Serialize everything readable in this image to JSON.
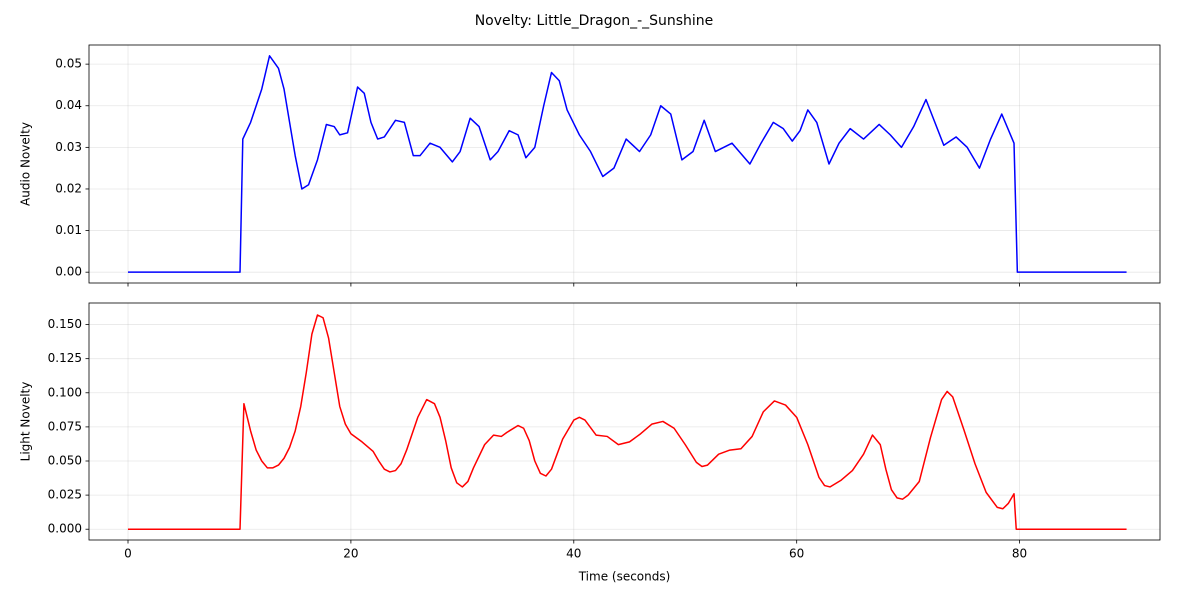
{
  "title": "Novelty: Little_Dragon_-_Sunshine",
  "chart_data": [
    {
      "type": "line",
      "ylabel": "Audio Novelty",
      "grid": true,
      "xtick_labels": false,
      "xlim": [
        -3.5,
        92.6
      ],
      "xticks": [
        0,
        20,
        40,
        60,
        80
      ],
      "ylim": [
        -0.0026,
        0.0546
      ],
      "yticks": [
        {
          "value": 0,
          "label": "0.00"
        },
        {
          "value": 0.01,
          "label": "0.01"
        },
        {
          "value": 0.02,
          "label": "0.02"
        },
        {
          "value": 0.03,
          "label": "0.03"
        },
        {
          "value": 0.04,
          "label": "0.04"
        },
        {
          "value": 0.05,
          "label": "0.05"
        }
      ],
      "x": [
        0,
        10.05,
        10.3,
        11,
        12,
        12.7,
        13.5,
        14,
        14.5,
        15,
        15.6,
        16.2,
        17,
        17.8,
        18.5,
        19,
        19.7,
        20.6,
        21.2,
        21.8,
        22.4,
        23,
        24,
        24.8,
        25.6,
        26.2,
        27.1,
        28,
        29.1,
        29.8,
        30.7,
        31.5,
        32.5,
        33.2,
        34.2,
        35,
        35.7,
        36.5,
        37.3,
        38,
        38.7,
        39.4,
        40.5,
        41.5,
        42.6,
        43.6,
        44.7,
        45.9,
        46.9,
        47.8,
        48.7,
        49.7,
        50.7,
        51.7,
        52.7,
        54.2,
        55.8,
        56.8,
        57.9,
        58.8,
        59.6,
        60.3,
        61,
        61.8,
        62.9,
        63.8,
        64.8,
        66,
        67.4,
        68.4,
        69.4,
        70.5,
        71.6,
        72.4,
        73.2,
        74.3,
        75.3,
        76.4,
        77.4,
        78.4,
        79.5,
        79.8,
        89.6
      ],
      "series": [
        {
          "color": "#0000ff",
          "values": [
            0,
            0,
            0.032,
            0.036,
            0.044,
            0.052,
            0.049,
            0.044,
            0.036,
            0.028,
            0.02,
            0.021,
            0.027,
            0.0355,
            0.035,
            0.033,
            0.0335,
            0.0445,
            0.043,
            0.036,
            0.032,
            0.0325,
            0.0365,
            0.036,
            0.028,
            0.028,
            0.031,
            0.03,
            0.0265,
            0.029,
            0.037,
            0.035,
            0.027,
            0.029,
            0.034,
            0.033,
            0.0275,
            0.03,
            0.04,
            0.048,
            0.046,
            0.039,
            0.033,
            0.029,
            0.023,
            0.025,
            0.032,
            0.029,
            0.033,
            0.04,
            0.038,
            0.027,
            0.029,
            0.0365,
            0.029,
            0.031,
            0.026,
            0.031,
            0.036,
            0.0345,
            0.0315,
            0.034,
            0.039,
            0.036,
            0.026,
            0.031,
            0.0345,
            0.032,
            0.0355,
            0.033,
            0.03,
            0.035,
            0.0415,
            0.036,
            0.0305,
            0.0325,
            0.03,
            0.025,
            0.032,
            0.038,
            0.031,
            0,
            0
          ]
        }
      ]
    },
    {
      "type": "line",
      "ylabel": "Light Novelty",
      "xlabel": "Time (seconds)",
      "grid": true,
      "xlim": [
        -3.5,
        92.6
      ],
      "xticks": [
        0,
        20,
        40,
        60,
        80
      ],
      "ylim": [
        -0.0079,
        0.1658
      ],
      "yticks": [
        {
          "value": 0,
          "label": "0.000"
        },
        {
          "value": 0.025,
          "label": "0.025"
        },
        {
          "value": 0.05,
          "label": "0.050"
        },
        {
          "value": 0.075,
          "label": "0.075"
        },
        {
          "value": 0.1,
          "label": "0.100"
        },
        {
          "value": 0.125,
          "label": "0.125"
        },
        {
          "value": 0.15,
          "label": "0.150"
        }
      ],
      "x": [
        0,
        10.05,
        10.4,
        11,
        11.5,
        12,
        12.5,
        13,
        13.5,
        14,
        14.5,
        15,
        15.5,
        16,
        16.5,
        17,
        17.5,
        18,
        18.5,
        19,
        19.5,
        20,
        21,
        22,
        22.5,
        23,
        23.5,
        24,
        24.5,
        25,
        26,
        26.8,
        27.5,
        28,
        28.5,
        29,
        29.5,
        30,
        30.5,
        31,
        32,
        32.8,
        33.5,
        34,
        35,
        35.5,
        36,
        36.5,
        37,
        37.5,
        38,
        39,
        40,
        40.5,
        41,
        42,
        43,
        44,
        45,
        46,
        47,
        48,
        49,
        50,
        51,
        51.5,
        52,
        53,
        54,
        55,
        56,
        57,
        58,
        59,
        60,
        61,
        62,
        62.5,
        63,
        64,
        65,
        66,
        66.8,
        67.5,
        68,
        68.5,
        69,
        69.5,
        70,
        71,
        72,
        73,
        73.5,
        74,
        75,
        76,
        77,
        78,
        78.5,
        79,
        79.5,
        79.7,
        89.6
      ],
      "series": [
        {
          "color": "#ff0000",
          "values": [
            0,
            0,
            0.092,
            0.072,
            0.058,
            0.05,
            0.045,
            0.045,
            0.047,
            0.052,
            0.06,
            0.072,
            0.09,
            0.115,
            0.143,
            0.157,
            0.155,
            0.14,
            0.115,
            0.09,
            0.077,
            0.07,
            0.064,
            0.057,
            0.05,
            0.044,
            0.042,
            0.043,
            0.048,
            0.058,
            0.082,
            0.095,
            0.092,
            0.082,
            0.065,
            0.045,
            0.034,
            0.031,
            0.035,
            0.045,
            0.062,
            0.069,
            0.068,
            0.071,
            0.076,
            0.074,
            0.065,
            0.05,
            0.041,
            0.039,
            0.044,
            0.066,
            0.08,
            0.082,
            0.08,
            0.069,
            0.068,
            0.062,
            0.064,
            0.07,
            0.077,
            0.079,
            0.074,
            0.062,
            0.049,
            0.046,
            0.047,
            0.055,
            0.058,
            0.059,
            0.068,
            0.086,
            0.094,
            0.091,
            0.082,
            0.062,
            0.038,
            0.032,
            0.031,
            0.036,
            0.043,
            0.055,
            0.069,
            0.062,
            0.044,
            0.029,
            0.023,
            0.022,
            0.025,
            0.035,
            0.067,
            0.095,
            0.101,
            0.097,
            0.073,
            0.048,
            0.027,
            0.016,
            0.015,
            0.019,
            0.026,
            0,
            0
          ]
        }
      ]
    }
  ]
}
